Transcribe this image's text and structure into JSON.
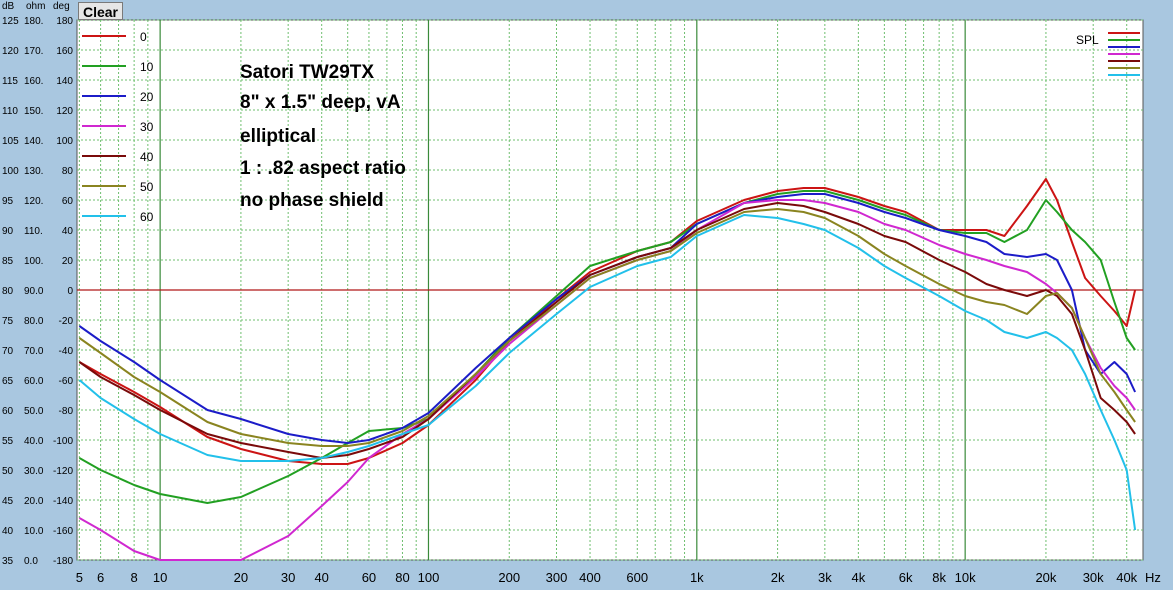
{
  "toolbar": {
    "clear_label": "Clear"
  },
  "units": {
    "db": "dB",
    "ohm": "ohm",
    "deg": "deg"
  },
  "chart_data": {
    "type": "line",
    "x_scale": "log",
    "x_unit": "Hz",
    "xlim": [
      4.9,
      46000
    ],
    "ylim": [
      35,
      125
    ],
    "grid": true,
    "x_ticks": [
      {
        "v": 5,
        "label": "5"
      },
      {
        "v": 6,
        "label": "6"
      },
      {
        "v": 8,
        "label": "8"
      },
      {
        "v": 10,
        "label": "10"
      },
      {
        "v": 20,
        "label": "20"
      },
      {
        "v": 30,
        "label": "30"
      },
      {
        "v": 40,
        "label": "40"
      },
      {
        "v": 60,
        "label": "60"
      },
      {
        "v": 80,
        "label": "80"
      },
      {
        "v": 100,
        "label": "100"
      },
      {
        "v": 200,
        "label": "200"
      },
      {
        "v": 300,
        "label": "300"
      },
      {
        "v": 400,
        "label": "400"
      },
      {
        "v": 600,
        "label": "600"
      },
      {
        "v": 1000,
        "label": "1k"
      },
      {
        "v": 2000,
        "label": "2k"
      },
      {
        "v": 3000,
        "label": "3k"
      },
      {
        "v": 4000,
        "label": "4k"
      },
      {
        "v": 6000,
        "label": "6k"
      },
      {
        "v": 8000,
        "label": "8k"
      },
      {
        "v": 10000,
        "label": "10k"
      },
      {
        "v": 20000,
        "label": "20k"
      },
      {
        "v": 30000,
        "label": "30k"
      },
      {
        "v": 40000,
        "label": "40k"
      }
    ],
    "y_ticks": [
      {
        "db": 125,
        "ohm": "180.",
        "deg": "180"
      },
      {
        "db": 120,
        "ohm": "170.",
        "deg": "160"
      },
      {
        "db": 115,
        "ohm": "160.",
        "deg": "140"
      },
      {
        "db": 110,
        "ohm": "150.",
        "deg": "120"
      },
      {
        "db": 105,
        "ohm": "140.",
        "deg": "100"
      },
      {
        "db": 100,
        "ohm": "130.",
        "deg": "80"
      },
      {
        "db": 95,
        "ohm": "120.",
        "deg": "60"
      },
      {
        "db": 90,
        "ohm": "110.",
        "deg": "40"
      },
      {
        "db": 85,
        "ohm": "100.",
        "deg": "20"
      },
      {
        "db": 80,
        "ohm": "90.0",
        "deg": "0"
      },
      {
        "db": 75,
        "ohm": "80.0",
        "deg": "-20"
      },
      {
        "db": 70,
        "ohm": "70.0",
        "deg": "-40"
      },
      {
        "db": 65,
        "ohm": "60.0",
        "deg": "-60"
      },
      {
        "db": 60,
        "ohm": "50.0",
        "deg": "-80"
      },
      {
        "db": 55,
        "ohm": "40.0",
        "deg": "-100"
      },
      {
        "db": 50,
        "ohm": "30.0",
        "deg": "-120"
      },
      {
        "db": 45,
        "ohm": "20.0",
        "deg": "-140"
      },
      {
        "db": 40,
        "ohm": "10.0",
        "deg": "-160"
      },
      {
        "db": 35,
        "ohm": "0.0",
        "deg": "-180"
      }
    ],
    "reference_line_db": 80,
    "annotations": [
      "Satori TW29TX",
      "8\" x 1.5\" deep, vA",
      "elliptical",
      "1 : .82 aspect ratio",
      "no phase shield"
    ],
    "legend_label": "SPL",
    "series": [
      {
        "name": "0",
        "color": "#cc1414",
        "x": [
          5,
          6,
          8,
          10,
          15,
          20,
          30,
          40,
          50,
          60,
          80,
          100,
          150,
          200,
          300,
          400,
          600,
          800,
          1000,
          1500,
          2000,
          2500,
          3000,
          4000,
          5000,
          6000,
          8000,
          10000,
          12000,
          14000,
          17000,
          20000,
          22000,
          25000,
          28000,
          32000,
          36000,
          40000,
          43000
        ],
        "y": [
          68,
          66,
          63,
          60.5,
          55.5,
          53.5,
          51.5,
          51,
          51,
          52,
          54.5,
          57.5,
          65,
          71.5,
          78.5,
          83,
          86.5,
          88,
          91.5,
          95,
          96.5,
          97,
          97,
          95.5,
          94,
          93,
          90,
          90,
          90,
          89,
          94,
          98.5,
          95,
          88,
          82,
          79,
          76.5,
          74,
          80
        ]
      },
      {
        "name": "10",
        "color": "#22a022",
        "x": [
          5,
          6,
          8,
          10,
          15,
          20,
          30,
          40,
          50,
          60,
          80,
          100,
          150,
          200,
          300,
          400,
          600,
          800,
          1000,
          1500,
          2000,
          2500,
          3000,
          4000,
          5000,
          6000,
          8000,
          10000,
          12000,
          14000,
          17000,
          20000,
          22000,
          25000,
          28000,
          32000,
          36000,
          40000,
          43000
        ],
        "y": [
          52,
          50,
          47.5,
          46,
          44.5,
          45.5,
          49,
          52,
          54.5,
          56.5,
          57,
          58.5,
          66,
          72,
          79,
          84,
          86.5,
          88,
          91,
          94.5,
          96,
          96.5,
          96.5,
          95,
          93.5,
          92.5,
          90,
          89.5,
          89.5,
          88,
          90,
          95,
          93,
          90,
          88,
          85,
          78,
          72,
          70
        ]
      },
      {
        "name": "20",
        "color": "#1c1cc8",
        "x": [
          5,
          6,
          8,
          10,
          15,
          20,
          30,
          40,
          50,
          60,
          80,
          100,
          150,
          200,
          300,
          400,
          600,
          800,
          1000,
          1500,
          2000,
          2500,
          3000,
          4000,
          5000,
          6000,
          8000,
          10000,
          12000,
          14000,
          17000,
          20000,
          22000,
          25000,
          28000,
          32000,
          36000,
          40000,
          43000
        ],
        "y": [
          74,
          71.5,
          68,
          65,
          60,
          58.5,
          56,
          55,
          54.5,
          55,
          57,
          59.5,
          67,
          72,
          78.5,
          82.5,
          85.5,
          87,
          91,
          94.5,
          95.5,
          96,
          96,
          94.5,
          93,
          92,
          90,
          89,
          88,
          86,
          85.5,
          86,
          85,
          80,
          70,
          66,
          68,
          66,
          63
        ]
      },
      {
        "name": "30",
        "color": "#d028d0",
        "x": [
          5,
          6,
          8,
          10,
          15,
          20,
          30,
          40,
          50,
          60,
          80,
          100,
          150,
          200,
          300,
          400,
          600,
          800,
          1000,
          1500,
          2000,
          2500,
          3000,
          4000,
          5000,
          6000,
          8000,
          10000,
          12000,
          14000,
          17000,
          20000,
          22000,
          25000,
          28000,
          32000,
          36000,
          40000,
          43000
        ],
        "y": [
          42,
          40,
          36.5,
          35,
          35,
          35,
          39,
          44,
          48,
          52,
          56,
          58.5,
          65.5,
          71,
          77.5,
          82,
          85,
          86.5,
          90,
          94.5,
          95,
          95,
          94.5,
          93,
          91,
          90,
          87.5,
          86,
          85,
          84,
          83,
          81,
          79.5,
          77,
          72,
          67,
          64,
          62,
          60
        ]
      },
      {
        "name": "40",
        "color": "#7a0a0a",
        "x": [
          5,
          6,
          8,
          10,
          15,
          20,
          30,
          40,
          50,
          60,
          80,
          100,
          150,
          200,
          300,
          400,
          600,
          800,
          1000,
          1500,
          2000,
          2500,
          3000,
          4000,
          5000,
          6000,
          8000,
          10000,
          12000,
          14000,
          17000,
          20000,
          22000,
          25000,
          28000,
          32000,
          36000,
          40000,
          43000
        ],
        "y": [
          68,
          65.5,
          62.5,
          60,
          56,
          54.5,
          53,
          52,
          52.5,
          53.5,
          55.5,
          58.5,
          66,
          71.5,
          78,
          82.5,
          85.5,
          87,
          90,
          93.5,
          94.5,
          94,
          93,
          91,
          89,
          88,
          85,
          83,
          81,
          80,
          79,
          80,
          79,
          76,
          70,
          62,
          60,
          58,
          56
        ]
      },
      {
        "name": "50",
        "color": "#8a8420",
        "x": [
          5,
          6,
          8,
          10,
          15,
          20,
          30,
          40,
          50,
          60,
          80,
          100,
          150,
          200,
          300,
          400,
          600,
          800,
          1000,
          1500,
          2000,
          2500,
          3000,
          4000,
          5000,
          6000,
          8000,
          10000,
          12000,
          14000,
          17000,
          20000,
          22000,
          25000,
          28000,
          32000,
          36000,
          40000,
          43000
        ],
        "y": [
          72,
          69.5,
          65.5,
          63,
          58,
          56,
          54.5,
          54,
          54,
          54.5,
          56.5,
          59,
          66,
          71.5,
          77.5,
          82,
          85,
          86.5,
          89.5,
          93,
          93.5,
          93,
          92,
          89,
          86,
          84,
          81,
          79,
          78,
          77.5,
          76,
          79,
          79.5,
          77,
          72,
          66,
          63,
          60,
          58
        ]
      },
      {
        "name": "60",
        "color": "#22c0ea",
        "x": [
          5,
          6,
          8,
          10,
          15,
          20,
          30,
          40,
          50,
          60,
          80,
          100,
          150,
          200,
          300,
          400,
          600,
          800,
          1000,
          1500,
          2000,
          2500,
          3000,
          4000,
          5000,
          6000,
          8000,
          10000,
          12000,
          14000,
          17000,
          20000,
          22000,
          25000,
          28000,
          32000,
          36000,
          40000,
          43000
        ],
        "y": [
          65,
          62,
          58.5,
          56,
          52.5,
          51.5,
          51.5,
          52,
          53,
          54,
          56,
          57.5,
          64,
          69.5,
          76,
          80.5,
          84,
          85.5,
          89,
          92.5,
          92,
          91,
          90,
          87,
          84,
          82,
          79,
          76.5,
          75,
          73,
          72,
          73,
          72,
          70,
          66,
          60,
          55,
          50,
          40
        ]
      }
    ]
  }
}
